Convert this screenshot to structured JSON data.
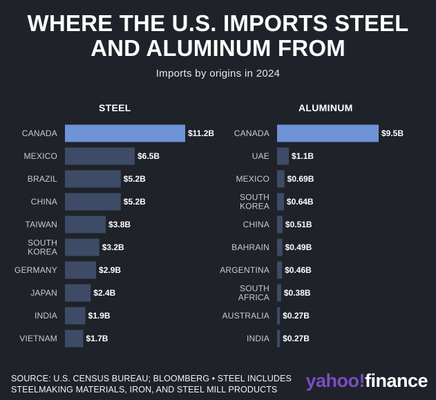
{
  "title_line1": "WHERE THE U.S. IMPORTS STEEL",
  "title_line2": "AND ALUMINUM FROM",
  "subtitle": "Imports by origins in 2024",
  "source_line1": "SOURCE: U.S. CENSUS BUREAU; BLOOMBERG • STEEL INCLUDES",
  "source_line2": "STEELMAKING MATERIALS, IRON, AND STEEL MILL PRODUCTS",
  "brand": {
    "part1": "yahoo!",
    "part2": "finance"
  },
  "colors": {
    "highlight": "#6e93d6",
    "bar": "#3d4b66",
    "background": "#1f2329"
  },
  "chart_data": [
    {
      "type": "bar",
      "orientation": "horizontal",
      "title": "STEEL",
      "unit": "$B",
      "categories": [
        "CANADA",
        "MEXICO",
        "BRAZIL",
        "CHINA",
        "TAIWAN",
        "SOUTH\nKOREA",
        "GERMANY",
        "JAPAN",
        "INDIA",
        "VIETNAM"
      ],
      "values": [
        11.2,
        6.5,
        5.2,
        5.2,
        3.8,
        3.2,
        2.9,
        2.4,
        1.9,
        1.7
      ],
      "labels": [
        "$11.2B",
        "$6.5B",
        "$5.2B",
        "$5.2B",
        "$3.8B",
        "$3.2B",
        "$2.9B",
        "$2.4B",
        "$1.9B",
        "$1.7B"
      ],
      "highlight_index": 0
    },
    {
      "type": "bar",
      "orientation": "horizontal",
      "title": "ALUMINUM",
      "unit": "$B",
      "categories": [
        "CANADA",
        "UAE",
        "MEXICO",
        "SOUTH\nKOREA",
        "CHINA",
        "BAHRAIN",
        "ARGENTINA",
        "SOUTH\nAFRICA",
        "AUSTRALIA",
        "INDIA"
      ],
      "values": [
        9.5,
        1.1,
        0.69,
        0.64,
        0.51,
        0.49,
        0.46,
        0.38,
        0.27,
        0.27
      ],
      "labels": [
        "$9.5B",
        "$1.1B",
        "$0.69B",
        "$0.64B",
        "$0.51B",
        "$0.49B",
        "$0.46B",
        "$0.38B",
        "$0.27B",
        "$0.27B"
      ],
      "highlight_index": 0
    }
  ]
}
